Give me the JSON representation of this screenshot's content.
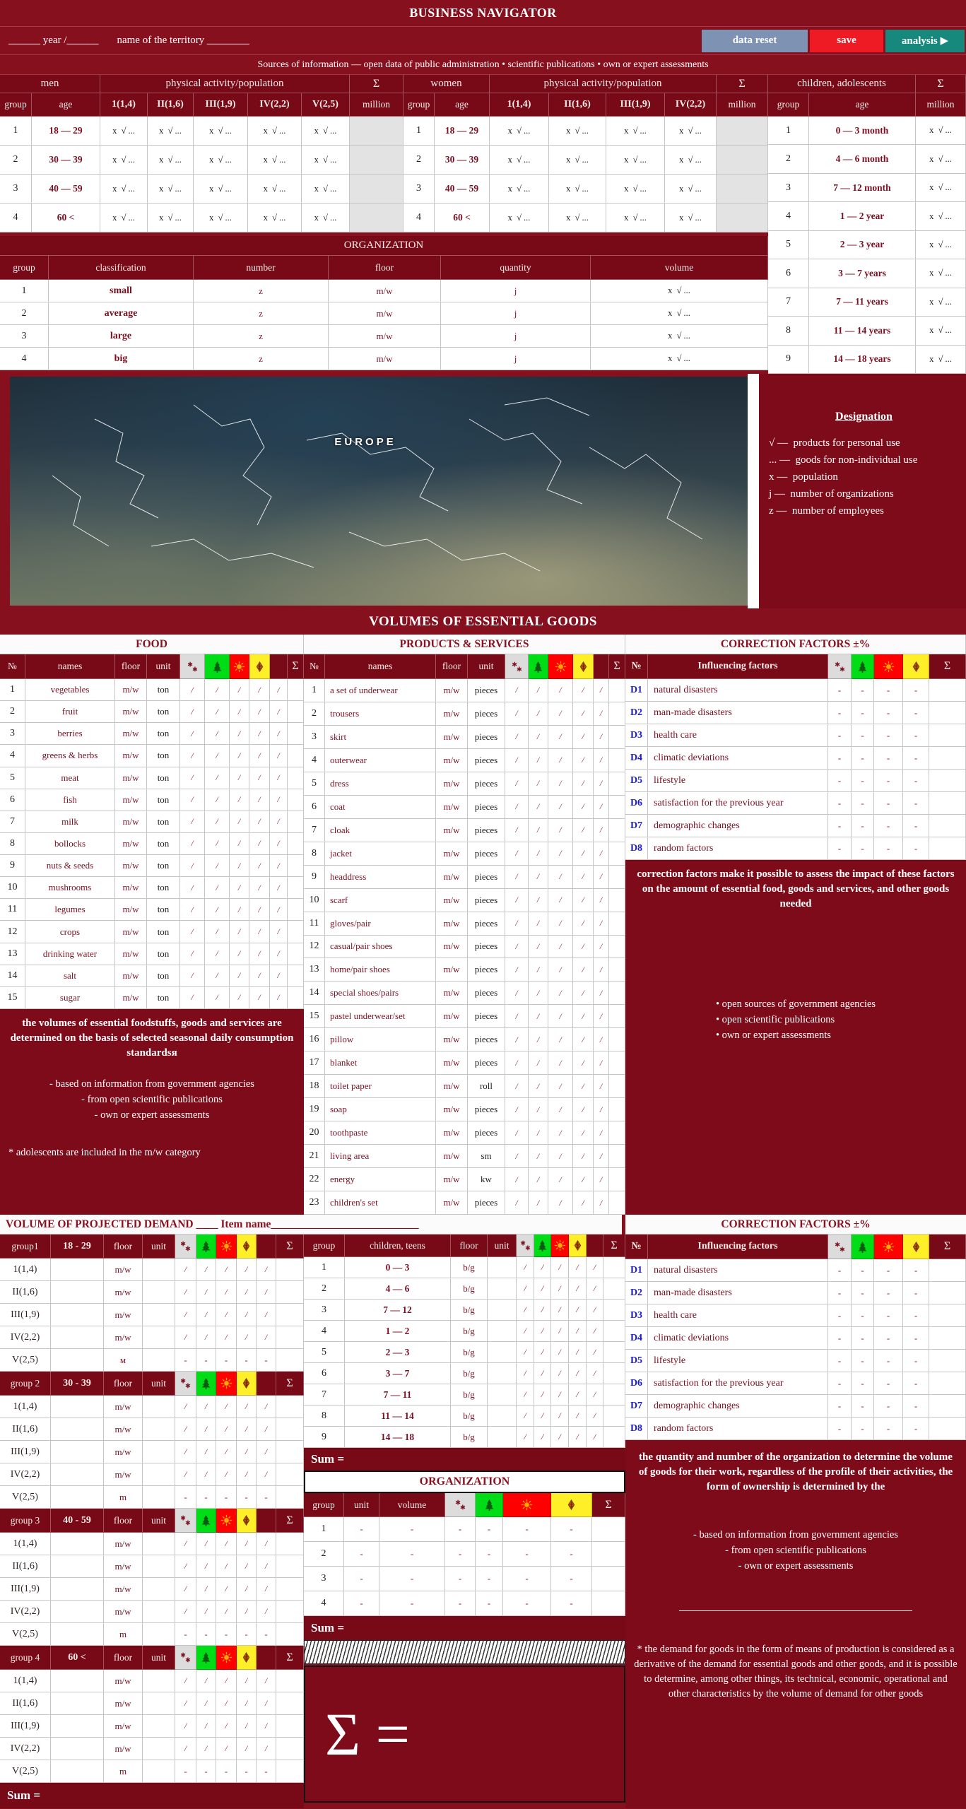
{
  "app": {
    "title": "BUSINESS NAVIGATOR",
    "year_field": "______ year /______",
    "territory_field": "name of the territory ________",
    "buttons": {
      "data_reset": "data reset",
      "save": "save",
      "analysis": "analysis ▶"
    },
    "sources": "Sources of information — open data of public administration • scientific publications • own or expert assessments"
  },
  "labels": {
    "group": "group",
    "age": "age",
    "million": "million",
    "sum": "Σ",
    "num": "№",
    "names": "names",
    "floor": "floor",
    "unit": "unit",
    "cell_entry": "x  √ ...",
    "slash": "/",
    "dash": "-",
    "sum_eq": "Sum =",
    "sigma_eq": "Σ =",
    "mw": "m/w",
    "z": "z",
    "j": "j",
    "activity": "physical activity/population",
    "influencing": "Influencing factors"
  },
  "population": {
    "men": {
      "title": "men",
      "cols": [
        "1(1,4)",
        "II(1,6)",
        "III(1,9)",
        "IV(2,2)",
        "V(2,5)"
      ],
      "rows": [
        {
          "g": "1",
          "age": "18 — 29"
        },
        {
          "g": "2",
          "age": "30 — 39"
        },
        {
          "g": "3",
          "age": "40 — 59"
        },
        {
          "g": "4",
          "age": "60 <"
        }
      ]
    },
    "women": {
      "title": "women",
      "cols": [
        "1(1,4)",
        "II(1,6)",
        "III(1,9)",
        "IV(2,2)"
      ],
      "rows": [
        {
          "g": "1",
          "age": "18 — 29"
        },
        {
          "g": "2",
          "age": "30 — 39"
        },
        {
          "g": "3",
          "age": "40 — 59"
        },
        {
          "g": "4",
          "age": "60 <"
        }
      ]
    },
    "children": {
      "title": "children, adolescents",
      "rows": [
        {
          "g": "1",
          "age": "0 — 3  month"
        },
        {
          "g": "2",
          "age": "4 — 6 month"
        },
        {
          "g": "3",
          "age": "7 — 12 month"
        },
        {
          "g": "4",
          "age": "1 — 2 year"
        },
        {
          "g": "5",
          "age": "2 — 3 year"
        },
        {
          "g": "6",
          "age": "3 — 7 years"
        },
        {
          "g": "7",
          "age": "7 — 11 years"
        },
        {
          "g": "8",
          "age": "11 — 14 years"
        },
        {
          "g": "9",
          "age": "14 — 18 years"
        }
      ]
    }
  },
  "organization": {
    "title": "ORGANIZATION",
    "cols": [
      "group",
      "classification",
      "number",
      "floor",
      "quantity",
      "volume"
    ],
    "rows": [
      {
        "g": "1",
        "c": "small"
      },
      {
        "g": "2",
        "c": "average"
      },
      {
        "g": "3",
        "c": "large"
      },
      {
        "g": "4",
        "c": "big"
      }
    ]
  },
  "map": {
    "label": "EUROPE"
  },
  "designation": {
    "title": "Designation",
    "items": [
      "√ —  products for personal use",
      "... —  goods for non-individual use",
      "x —  population",
      "j —  number of organizations",
      "z —  number of employees"
    ]
  },
  "volumes_title": "VOLUMES OF ESSENTIAL GOODS",
  "food": {
    "title": "FOOD",
    "rows": [
      [
        "1",
        "vegetables",
        "ton"
      ],
      [
        "2",
        "fruit",
        "ton"
      ],
      [
        "3",
        "berries",
        "ton"
      ],
      [
        "4",
        "greens & herbs",
        "ton"
      ],
      [
        "5",
        "meat",
        "ton"
      ],
      [
        "6",
        "fish",
        "ton"
      ],
      [
        "7",
        "milk",
        "ton"
      ],
      [
        "8",
        "bollocks",
        "ton"
      ],
      [
        "9",
        "nuts & seeds",
        "ton"
      ],
      [
        "10",
        "mushrooms",
        "ton"
      ],
      [
        "11",
        "legumes",
        "ton"
      ],
      [
        "12",
        "crops",
        "ton"
      ],
      [
        "13",
        "drinking water",
        "ton"
      ],
      [
        "14",
        "salt",
        "ton"
      ],
      [
        "15",
        "sugar",
        "ton"
      ]
    ]
  },
  "products": {
    "title": "PRODUCTS & SERVICES",
    "rows": [
      [
        "1",
        "a set of underwear",
        "pieces"
      ],
      [
        "2",
        "trousers",
        "pieces"
      ],
      [
        "3",
        "skirt",
        "pieces"
      ],
      [
        "4",
        "outerwear",
        "pieces"
      ],
      [
        "5",
        "dress",
        "pieces"
      ],
      [
        "6",
        "coat",
        "pieces"
      ],
      [
        "7",
        "cloak",
        "pieces"
      ],
      [
        "8",
        "jacket",
        "pieces"
      ],
      [
        "9",
        "headdress",
        "pieces"
      ],
      [
        "10",
        "scarf",
        "pieces"
      ],
      [
        "11",
        "gloves/pair",
        "pieces"
      ],
      [
        "12",
        "casual/pair shoes",
        "pieces"
      ],
      [
        "13",
        "home/pair shoes",
        "pieces"
      ],
      [
        "14",
        "special shoes/pairs",
        "pieces"
      ],
      [
        "15",
        "pastel underwear/set",
        "pieces"
      ],
      [
        "16",
        "pillow",
        "pieces"
      ],
      [
        "17",
        "blanket",
        "pieces"
      ],
      [
        "18",
        "toilet paper",
        "roll"
      ],
      [
        "19",
        "soap",
        "pieces"
      ],
      [
        "20",
        "toothpaste",
        "pieces"
      ],
      [
        "21",
        "living area",
        "sm"
      ],
      [
        "22",
        "energy",
        "kw"
      ],
      [
        "23",
        "children's set",
        "pieces"
      ]
    ]
  },
  "factors": {
    "title": "CORRECTION FACTORS ±%",
    "rows": [
      [
        "D1",
        "natural disasters"
      ],
      [
        "D2",
        "man-made disasters"
      ],
      [
        "D3",
        "health care"
      ],
      [
        "D4",
        "climatic deviations"
      ],
      [
        "D5",
        "lifestyle"
      ],
      [
        "D6",
        "satisfaction for the previous year"
      ],
      [
        "D7",
        "demographic changes"
      ],
      [
        "D8",
        "random factors"
      ]
    ]
  },
  "notes": {
    "food": {
      "head": "the volumes of essential foodstuffs, goods and services are determined on the basis of selected seasonal daily consumption standardsя",
      "bullets": [
        "- based on information from government agencies",
        "-  from open scientific publications",
        "-  own or expert assessments"
      ],
      "star": "*  adolescents are included in the m/w category"
    },
    "factors": {
      "head": "correction factors make it possible to assess the impact of these factors on the amount of essential food, goods and services, and other goods needed",
      "bullets": [
        "• open sources of government agencies",
        "• open scientific publications",
        "• own or expert assessments"
      ]
    },
    "org": {
      "head": "the quantity and number of the organization to determine the volume of goods for their work, regardless of the profile of their activities, the form of ownership is determined by the",
      "bullets": [
        "-  based on information from government agencies",
        "-  from open scientific publications",
        "-  own or expert assessments"
      ],
      "star": "*  the demand for goods in the form of means of production is considered as a derivative of the demand for essential goods and other goods, and it is possible to determine, among other things, its technical, economic, operational and other characteristics by the volume of demand for other goods"
    }
  },
  "projected": {
    "title": "VOLUME OF PROJECTED DEMAND",
    "gap": " ____ ",
    "item": "Item name___________________________"
  },
  "demand": {
    "groups": [
      {
        "label": "group1",
        "age": "18 - 29",
        "rows": [
          [
            "1(1,4)",
            "m/w",
            "/"
          ],
          [
            "II(1,6)",
            "m/w",
            "/"
          ],
          [
            "III(1,9)",
            "m/w",
            "/"
          ],
          [
            "IV(2,2)",
            "m/w",
            "/"
          ],
          [
            "V(2,5)",
            "м",
            "-"
          ]
        ]
      },
      {
        "label": "group 2",
        "age": "30 - 39",
        "rows": [
          [
            "1(1,4)",
            "m/w",
            "/"
          ],
          [
            "II(1,6)",
            "m/w",
            "/"
          ],
          [
            "III(1,9)",
            "m/w",
            "/"
          ],
          [
            "IV(2,2)",
            "m/w",
            "/"
          ],
          [
            "V(2,5)",
            "m",
            "-"
          ]
        ]
      },
      {
        "label": "group 3",
        "age": "40 - 59",
        "rows": [
          [
            "1(1,4)",
            "m/w",
            "/"
          ],
          [
            "II(1,6)",
            "m/w",
            "/"
          ],
          [
            "III(1,9)",
            "m/w",
            "/"
          ],
          [
            "IV(2,2)",
            "m/w",
            "/"
          ],
          [
            "V(2,5)",
            "m",
            "-"
          ]
        ]
      },
      {
        "label": "group 4",
        "age": "60 <",
        "rows": [
          [
            "1(1,4)",
            "m/w",
            "/"
          ],
          [
            "II(1,6)",
            "m/w",
            "/"
          ],
          [
            "III(1,9)",
            "m/w",
            "/"
          ],
          [
            "IV(2,2)",
            "m/w",
            "/"
          ],
          [
            "V(2,5)",
            "m",
            "-"
          ]
        ]
      }
    ],
    "children": {
      "name_header": "children, teens",
      "floor": "b/g",
      "rows": [
        [
          "1",
          "0 — 3"
        ],
        [
          "2",
          "4 — 6"
        ],
        [
          "3",
          "7 — 12"
        ],
        [
          "4",
          "1 — 2"
        ],
        [
          "5",
          "2 — 3"
        ],
        [
          "6",
          "3 — 7"
        ],
        [
          "7",
          "7 — 11"
        ],
        [
          "8",
          "11 — 14"
        ],
        [
          "9",
          "14 — 18"
        ]
      ]
    },
    "org": {
      "title": "ORGANIZATION",
      "cols": [
        "group",
        "unit",
        "volume"
      ],
      "rows": [
        "1",
        "2",
        "3",
        "4"
      ]
    }
  }
}
